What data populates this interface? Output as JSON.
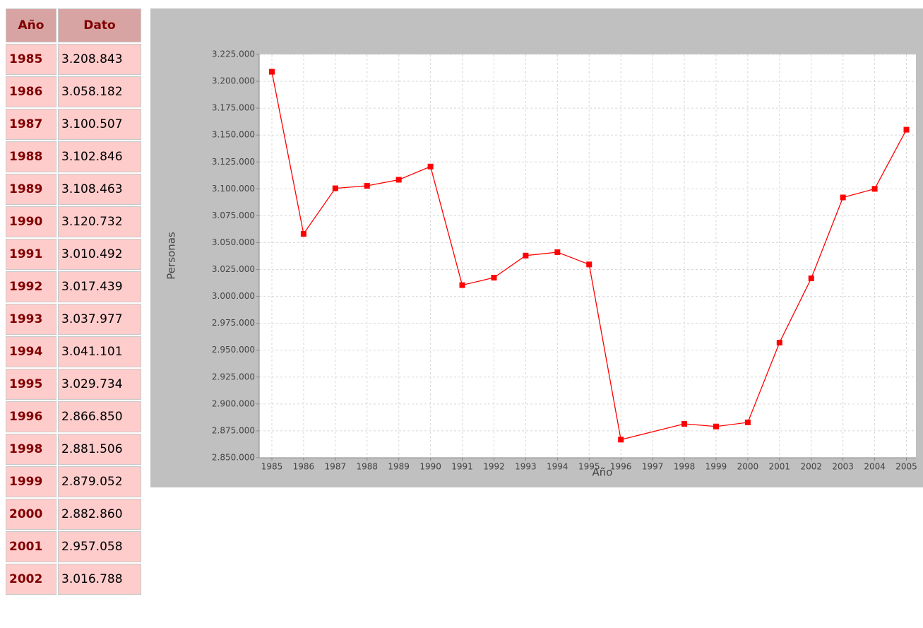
{
  "table": {
    "header": [
      "Año",
      "Dato"
    ],
    "rows": [
      [
        "1985",
        "3.208.843"
      ],
      [
        "1986",
        "3.058.182"
      ],
      [
        "1987",
        "3.100.507"
      ],
      [
        "1988",
        "3.102.846"
      ],
      [
        "1989",
        "3.108.463"
      ],
      [
        "1990",
        "3.120.732"
      ],
      [
        "1991",
        "3.010.492"
      ],
      [
        "1992",
        "3.017.439"
      ],
      [
        "1993",
        "3.037.977"
      ],
      [
        "1994",
        "3.041.101"
      ],
      [
        "1995",
        "3.029.734"
      ],
      [
        "1996",
        "2.866.850"
      ],
      [
        "1998",
        "2.881.506"
      ],
      [
        "1999",
        "2.879.052"
      ],
      [
        "2000",
        "2.882.860"
      ],
      [
        "2001",
        "2.957.058"
      ],
      [
        "2002",
        "3.016.788"
      ]
    ]
  },
  "chart_data": {
    "type": "line",
    "x_label": "Año",
    "y_label": "Personas",
    "x": [
      1985,
      1986,
      1987,
      1988,
      1989,
      1990,
      1991,
      1992,
      1993,
      1994,
      1995,
      1996,
      1998,
      1999,
      2000,
      2001,
      2002,
      2003,
      2004,
      2005
    ],
    "values": [
      3208843,
      3058182,
      3100507,
      3102846,
      3108463,
      3120732,
      3010492,
      3017439,
      3037977,
      3041101,
      3029734,
      2866850,
      2881506,
      2879052,
      2882860,
      2957058,
      3016788,
      3092000,
      3100000,
      3155000
    ],
    "color": "#ff0000",
    "xlim": [
      1984.6,
      2005.3
    ],
    "xticks": [
      1985,
      1986,
      1987,
      1988,
      1989,
      1990,
      1991,
      1992,
      1993,
      1994,
      1995,
      1996,
      1997,
      1998,
      1999,
      2000,
      2001,
      2002,
      2003,
      2004,
      2005
    ],
    "ylim": [
      2850000,
      3225000
    ],
    "yticks": [
      {
        "value": 2850000,
        "label": "2.850.000"
      },
      {
        "value": 2875000,
        "label": "2.875.000"
      },
      {
        "value": 2900000,
        "label": "2.900.000"
      },
      {
        "value": 2925000,
        "label": "2.925.000"
      },
      {
        "value": 2950000,
        "label": "2.950.000"
      },
      {
        "value": 2975000,
        "label": "2.975.000"
      },
      {
        "value": 3000000,
        "label": "3.000.000"
      },
      {
        "value": 3025000,
        "label": "3.025.000"
      },
      {
        "value": 3050000,
        "label": "3.050.000"
      },
      {
        "value": 3075000,
        "label": "3.075.000"
      },
      {
        "value": 3100000,
        "label": "3.100.000"
      },
      {
        "value": 3125000,
        "label": "3.125.000"
      },
      {
        "value": 3150000,
        "label": "3.150.000"
      },
      {
        "value": 3175000,
        "label": "3.175.000"
      },
      {
        "value": 3200000,
        "label": "3.200.000"
      },
      {
        "value": 3225000,
        "label": "3.225.000"
      }
    ],
    "grid": true
  }
}
